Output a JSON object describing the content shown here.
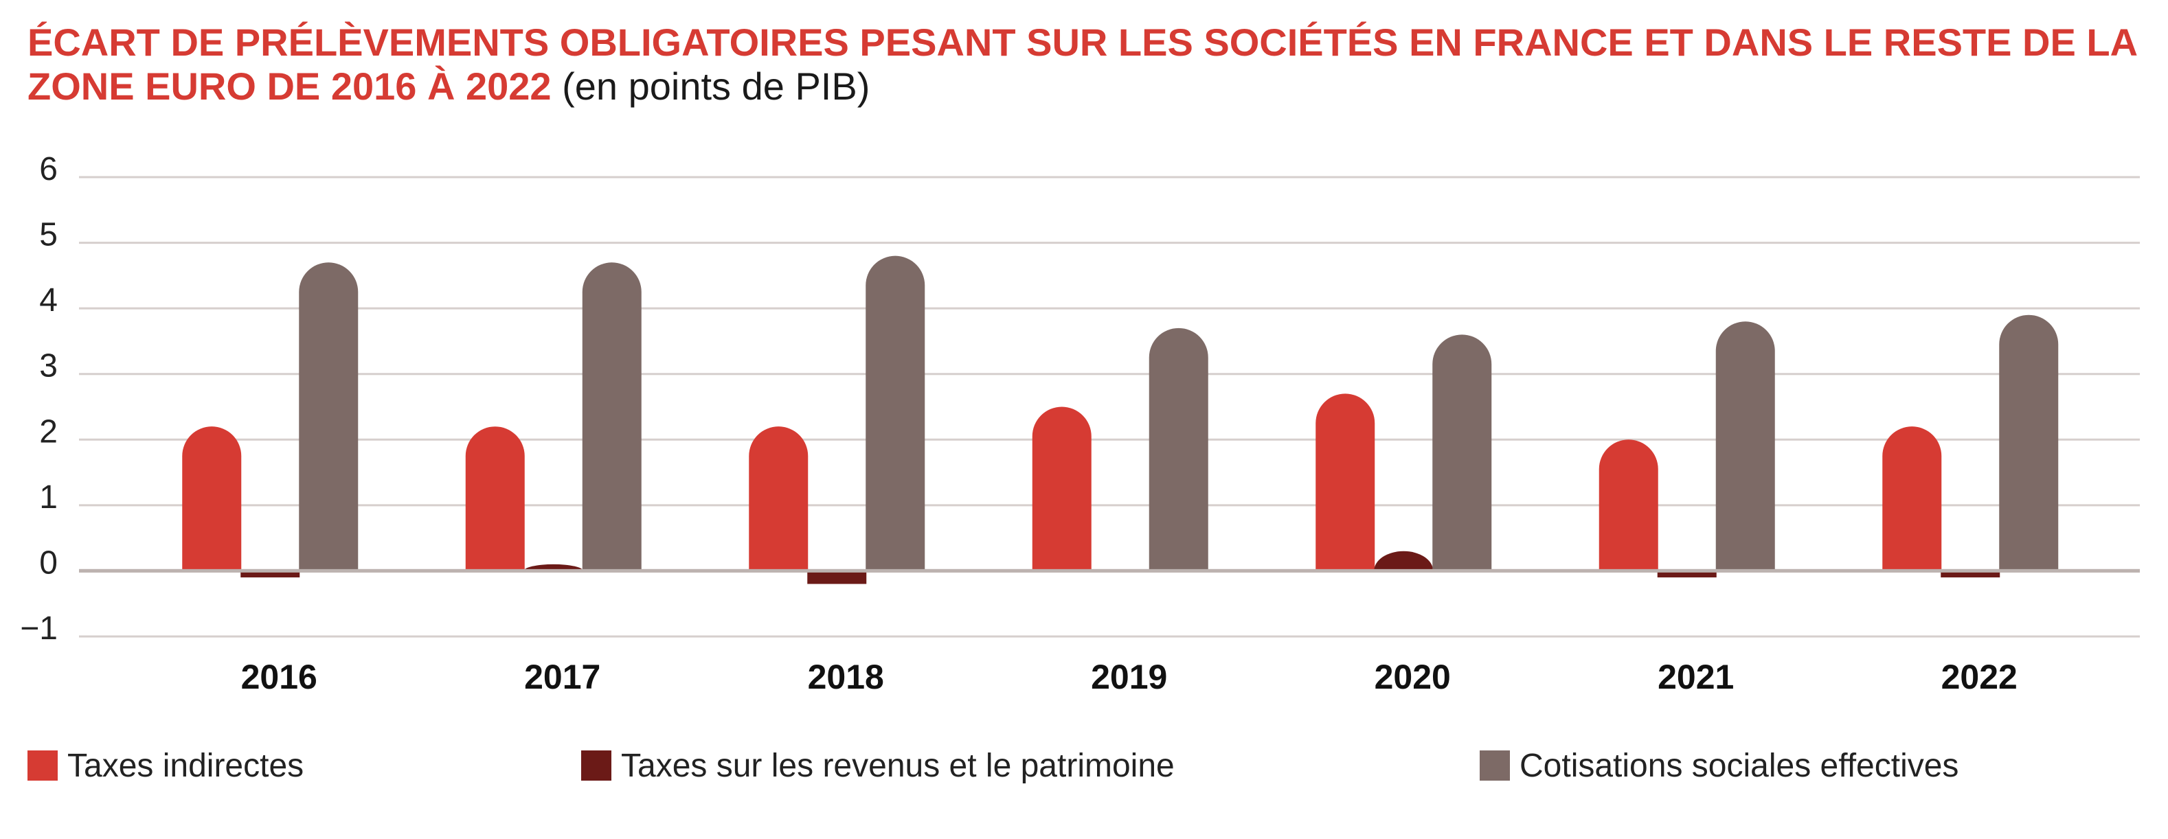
{
  "title": {
    "main": "ÉCART DE PRÉLÈVEMENTS OBLIGATOIRES PESANT SUR LES SOCIÉTÉS EN FRANCE ET DANS LE RESTE DE LA ZONE EURO DE 2016 À 2022",
    "unit": "(en points de PIB)"
  },
  "colors": {
    "title": "#d63b33",
    "taxes_indirectes": "#d63b33",
    "taxes_revenus": "#6b1a17",
    "cotisations": "#7d6a66",
    "grid": "#d6cfcd"
  },
  "chart_data": {
    "type": "bar",
    "title": "ÉCART DE PRÉLÈVEMENTS OBLIGATOIRES PESANT SUR LES SOCIÉTÉS EN FRANCE ET DANS LE RESTE DE LA ZONE EURO DE 2016 À 2022",
    "subtitle": "(en points de PIB)",
    "xlabel": "",
    "ylabel": "",
    "ylim": [
      -1,
      6
    ],
    "yticks": [
      "6",
      "5",
      "4",
      "3",
      "2",
      "1",
      "0",
      "−1"
    ],
    "ytick_values": [
      6,
      5,
      4,
      3,
      2,
      1,
      0,
      -1
    ],
    "grid": true,
    "legend_position": "bottom",
    "categories": [
      "2016",
      "2017",
      "2018",
      "2019",
      "2020",
      "2021",
      "2022"
    ],
    "series": [
      {
        "name": "Taxes indirectes",
        "color": "#d63b33",
        "values": [
          2.2,
          2.2,
          2.2,
          2.5,
          2.7,
          2.0,
          2.2
        ]
      },
      {
        "name": "Taxes sur les revenus et le patrimoine",
        "color": "#6b1a17",
        "values": [
          -0.1,
          0.1,
          -0.2,
          0.0,
          0.3,
          -0.1,
          -0.1
        ]
      },
      {
        "name": "Cotisations sociales effectives",
        "color": "#7d6a66",
        "values": [
          4.7,
          4.7,
          4.8,
          3.7,
          3.6,
          3.8,
          3.9
        ]
      }
    ]
  }
}
